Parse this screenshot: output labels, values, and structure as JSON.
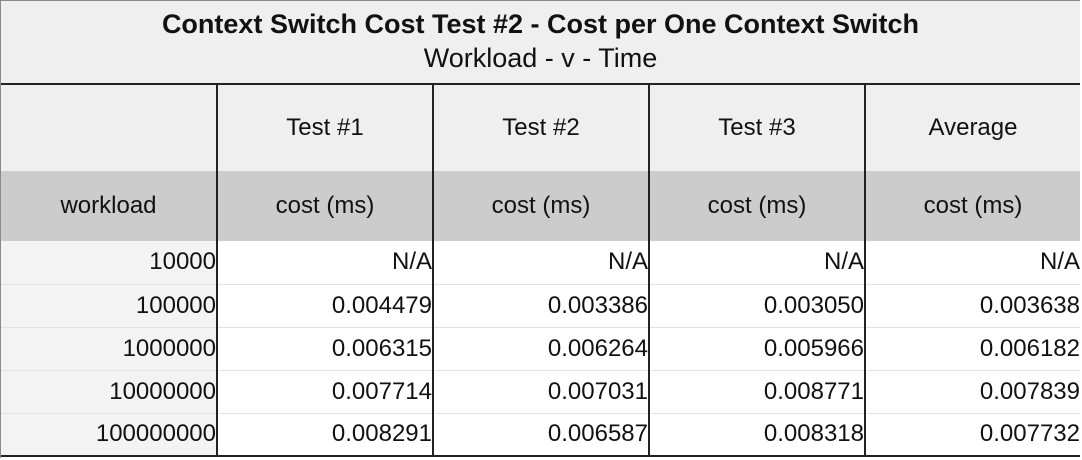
{
  "title": "Context Switch Cost Test #2 - Cost per One Context Switch",
  "subtitle": "Workload - v - Time",
  "tests": [
    "",
    "Test #1",
    "Test #2",
    "Test #3",
    "Average"
  ],
  "units": [
    "workload",
    "cost (ms)",
    "cost (ms)",
    "cost (ms)",
    "cost (ms)"
  ],
  "rows": [
    [
      "10000",
      "N/A",
      "N/A",
      "N/A",
      "N/A"
    ],
    [
      "100000",
      "0.004479",
      "0.003386",
      "0.003050",
      "0.003638"
    ],
    [
      "1000000",
      "0.006315",
      "0.006264",
      "0.005966",
      "0.006182"
    ],
    [
      "10000000",
      "0.007714",
      "0.007031",
      "0.008771",
      "0.007839"
    ],
    [
      "100000000",
      "0.008291",
      "0.006587",
      "0.008318",
      "0.007732"
    ]
  ]
}
